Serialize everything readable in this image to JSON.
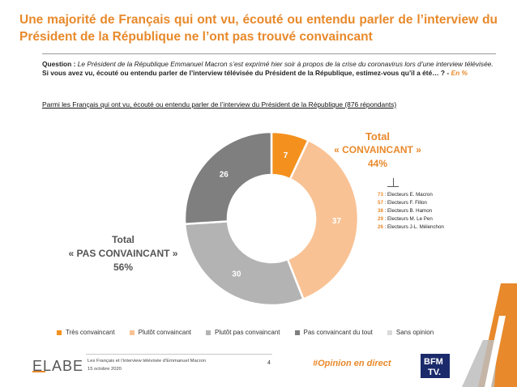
{
  "headline": "Une majorité de Français qui ont vu, écouté ou entendu parler de l’interview du Président de la République ne l’ont pas trouvé convaincant",
  "question": {
    "label": "Question : ",
    "italic": "Le Président de la République Emmanuel Macron s’est exprimé hier soir à propos de la crise du coronavirus lors d’une interview télévisée.",
    "bold": " Si vous avez vu, écouté ou entendu parler de l’interview télévisée du Président de la République, estimez-vous qu’il a été… ? - ",
    "unit": "En %"
  },
  "population": "Parmi les Français qui ont vu, écouté ou entendu parler de l’interview du Président de la République (876 répondants)",
  "total_convaincant": {
    "title": "Total",
    "label": "« CONVAINCANT »",
    "value": "44%"
  },
  "total_pas_convaincant": {
    "title": "Total",
    "label": "« PAS CONVAINCANT »",
    "value": "56%"
  },
  "voters": [
    {
      "value": "73",
      "label": " : Electeurs E. Macron"
    },
    {
      "value": "57",
      "label": " : Electeurs F. Fillon"
    },
    {
      "value": "38",
      "label": " : Electeurs B. Hamon"
    },
    {
      "value": "29",
      "label": " : Electeurs M. Le Pen"
    },
    {
      "value": "26",
      "label": " : Electeurs J-L. Mélenchon"
    }
  ],
  "chart_data": {
    "type": "pie",
    "title": "",
    "categories": [
      "Très convaincant",
      "Plutôt convaincant",
      "Plutôt pas convaincant",
      "Pas convaincant du tout",
      "Sans opinion"
    ],
    "values": [
      7,
      37,
      30,
      26,
      0
    ],
    "labels": [
      "7",
      "37",
      "30",
      "26",
      ""
    ],
    "colors": [
      "#f4911e",
      "#f9c294",
      "#b3b3b3",
      "#7f7f7f",
      "#d9d9d9"
    ],
    "label_colors": [
      "#ffffff",
      "#ffffff",
      "#ffffff",
      "#ffffff",
      "#ffffff"
    ],
    "donut": true,
    "legend_position": "bottom"
  },
  "footer": {
    "logo": "ELABE",
    "line1": "Les Français et l’interview télévisée d’Emmanuel Macron",
    "line2": "15 octobre 2020",
    "page": "4",
    "hashtag": "#Opinion en direct",
    "bfm_line1": "BFM",
    "bfm_line2": "TV."
  }
}
